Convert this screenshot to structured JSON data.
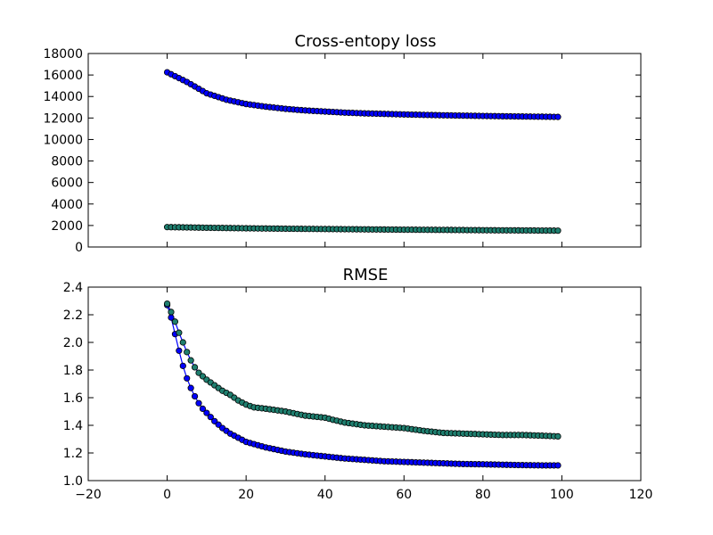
{
  "chart_data": [
    {
      "type": "line",
      "title": "Cross-entopy loss",
      "xlabel": "",
      "ylabel": "",
      "xlim": [
        -20,
        120
      ],
      "ylim": [
        0,
        18000
      ],
      "x_ticks": [],
      "y_ticks": [
        0,
        2000,
        4000,
        6000,
        8000,
        10000,
        12000,
        14000,
        16000,
        18000
      ],
      "grid": false,
      "series": [
        {
          "color": "#0000ff",
          "marker_color": "#0000ff",
          "x": [
            0,
            5,
            10,
            15,
            20,
            25,
            30,
            35,
            40,
            45,
            50,
            55,
            60,
            65,
            70,
            75,
            80,
            85,
            90,
            95,
            99
          ],
          "values": [
            16250,
            15350,
            14300,
            13700,
            13300,
            13050,
            12850,
            12700,
            12600,
            12500,
            12430,
            12380,
            12330,
            12290,
            12250,
            12220,
            12190,
            12160,
            12140,
            12120,
            12100
          ]
        },
        {
          "color": "#0000ff",
          "marker_color": "#1f7f6f",
          "x": [
            0,
            10,
            20,
            30,
            40,
            50,
            60,
            70,
            80,
            90,
            99
          ],
          "values": [
            1850,
            1790,
            1740,
            1700,
            1670,
            1640,
            1610,
            1590,
            1560,
            1540,
            1520
          ]
        }
      ]
    },
    {
      "type": "line",
      "title": "RMSE",
      "xlabel": "",
      "ylabel": "",
      "xlim": [
        -20,
        120
      ],
      "ylim": [
        1.0,
        2.4
      ],
      "x_ticks": [
        -20,
        0,
        20,
        40,
        60,
        80,
        100,
        120
      ],
      "y_ticks": [
        1.0,
        1.2,
        1.4,
        1.6,
        1.8,
        2.0,
        2.2,
        2.4
      ],
      "grid": false,
      "series": [
        {
          "color": "#0000ff",
          "marker_color": "#0000ff",
          "x": [
            0,
            1,
            2,
            3,
            4,
            5,
            6,
            7,
            8,
            9,
            10,
            12,
            14,
            16,
            18,
            20,
            25,
            30,
            35,
            40,
            45,
            50,
            55,
            60,
            65,
            70,
            75,
            80,
            85,
            90,
            95,
            99
          ],
          "values": [
            2.27,
            2.18,
            2.06,
            1.94,
            1.83,
            1.74,
            1.67,
            1.61,
            1.56,
            1.52,
            1.49,
            1.43,
            1.38,
            1.34,
            1.31,
            1.28,
            1.24,
            1.21,
            1.19,
            1.175,
            1.16,
            1.15,
            1.14,
            1.135,
            1.13,
            1.125,
            1.12,
            1.118,
            1.115,
            1.112,
            1.11,
            1.11
          ]
        },
        {
          "color": "#0000ff",
          "marker_color": "#1f7f6f",
          "x": [
            0,
            1,
            2,
            3,
            4,
            5,
            6,
            7,
            8,
            10,
            12,
            14,
            16,
            18,
            20,
            22,
            25,
            30,
            35,
            40,
            42,
            45,
            50,
            55,
            60,
            65,
            70,
            75,
            80,
            85,
            90,
            95,
            99
          ],
          "values": [
            2.28,
            2.22,
            2.15,
            2.07,
            2.0,
            1.93,
            1.87,
            1.82,
            1.78,
            1.73,
            1.69,
            1.65,
            1.62,
            1.58,
            1.55,
            1.53,
            1.52,
            1.5,
            1.47,
            1.455,
            1.44,
            1.42,
            1.4,
            1.39,
            1.38,
            1.36,
            1.345,
            1.34,
            1.335,
            1.33,
            1.33,
            1.325,
            1.32
          ]
        }
      ]
    }
  ]
}
